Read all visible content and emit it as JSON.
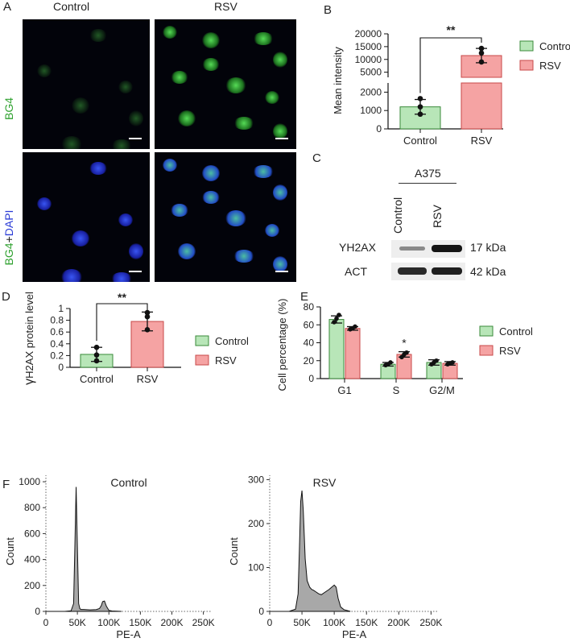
{
  "panels": {
    "A": {
      "letter": "A",
      "columns": [
        "Control",
        "RSV"
      ],
      "row_labels": [
        {
          "parts": [
            {
              "text": "BG4",
              "color": "#2fa12f"
            }
          ]
        },
        {
          "parts": [
            {
              "text": "BG4",
              "color": "#2fa12f"
            },
            {
              "text": "+",
              "color": "#222222"
            },
            {
              "text": "DAPI",
              "color": "#2a3bd6"
            }
          ]
        }
      ]
    },
    "B": {
      "letter": "B"
    },
    "C": {
      "letter": "C",
      "cell_line": "A375",
      "lanes": [
        "Control",
        "RSV"
      ],
      "bands": [
        {
          "protein": "YH2AX",
          "size": "17 kDa",
          "intensity": [
            0.45,
            1.0
          ]
        },
        {
          "protein": "ACT",
          "size": "42 kDa",
          "intensity": [
            0.9,
            0.95
          ]
        }
      ]
    },
    "D": {
      "letter": "D"
    },
    "E": {
      "letter": "E"
    },
    "F": {
      "letter": "F"
    }
  },
  "colors": {
    "control": "#b8e6b8",
    "control_edge": "#3a8a3a",
    "rsv": "#f5a3a3",
    "rsv_edge": "#c84a4a",
    "histogram": "#a8a8a8"
  },
  "chart_data": [
    {
      "id": "B",
      "type": "bar",
      "categories": [
        "Control",
        "RSV"
      ],
      "values": [
        1200,
        11500
      ],
      "errors": [
        400,
        2800
      ],
      "points": [
        [
          800,
          1200,
          1650
        ],
        [
          9000,
          12500,
          14300
        ]
      ],
      "ylabel": "Mean intensity",
      "y_ticks_lower": [
        0,
        1000,
        2000
      ],
      "y_ticks_upper": [
        5000,
        10000,
        15000,
        20000
      ],
      "ylim_lower": [
        0,
        2500
      ],
      "ylim_upper": [
        3000,
        20000
      ],
      "significance": "**",
      "legend": [
        "Control",
        "RSV"
      ],
      "legend_position": "right"
    },
    {
      "id": "D",
      "type": "bar",
      "categories": [
        "Control",
        "RSV"
      ],
      "values": [
        0.22,
        0.78
      ],
      "errors": [
        0.12,
        0.16
      ],
      "points": [
        [
          0.11,
          0.21,
          0.34
        ],
        [
          0.64,
          0.86,
          0.93
        ]
      ],
      "ylabel_prefix": "γ",
      "ylabel": "H2AX protein level",
      "ylim": [
        0,
        1.0
      ],
      "y_ticks": [
        0,
        0.2,
        0.4,
        0.6,
        0.8,
        1.0
      ],
      "significance": "**",
      "legend": [
        "Control",
        "RSV"
      ],
      "legend_position": "right"
    },
    {
      "id": "E",
      "type": "bar",
      "categories": [
        "G1",
        "S",
        "G2/M"
      ],
      "series": [
        {
          "name": "Control",
          "values": [
            66,
            16,
            18
          ],
          "errors": [
            4,
            2,
            3
          ],
          "points": [
            [
              63,
              67,
              71
            ],
            [
              15,
              16,
              18
            ],
            [
              16,
              18,
              20
            ]
          ]
        },
        {
          "name": "RSV",
          "values": [
            56,
            27,
            17
          ],
          "errors": [
            2,
            3,
            2
          ],
          "points": [
            [
              55,
              56,
              58
            ],
            [
              24,
              27,
              29
            ],
            [
              16,
              17,
              18
            ]
          ]
        }
      ],
      "ylabel": "Cell percentage (%)",
      "ylim": [
        0,
        80
      ],
      "y_ticks": [
        0,
        20,
        40,
        60,
        80
      ],
      "annotation": {
        "category": "S",
        "series": "RSV",
        "text": "*"
      },
      "legend_position": "right"
    },
    {
      "id": "F1",
      "type": "area",
      "title": "Control",
      "xlabel": "PE-A",
      "ylabel": "Count",
      "x_ticks": [
        "0",
        "50K",
        "100K",
        "150K",
        "200K",
        "250K"
      ],
      "y_ticks": [
        0,
        200,
        400,
        600,
        800,
        1000
      ],
      "xlim": [
        0,
        262000
      ],
      "ylim": [
        0,
        1050
      ],
      "x": [
        0,
        30000,
        40000,
        44000,
        46000,
        48000,
        50000,
        52000,
        54000,
        56000,
        60000,
        70000,
        80000,
        85000,
        88000,
        90000,
        93000,
        96000,
        100000,
        105000,
        120000
      ],
      "y": [
        0,
        0,
        5,
        60,
        500,
        960,
        500,
        60,
        20,
        15,
        15,
        12,
        14,
        22,
        45,
        75,
        80,
        40,
        8,
        3,
        0
      ]
    },
    {
      "id": "F2",
      "type": "area",
      "title": "RSV",
      "xlabel": "PE-A",
      "ylabel": "Count",
      "x_ticks": [
        "0",
        "50K",
        "100K",
        "150K",
        "200K",
        "250K"
      ],
      "y_ticks": [
        0,
        100,
        200,
        300
      ],
      "xlim": [
        0,
        262000
      ],
      "ylim": [
        0,
        310
      ],
      "x": [
        0,
        30000,
        40000,
        44000,
        46000,
        48000,
        50000,
        52000,
        55000,
        58000,
        62000,
        65000,
        68000,
        72000,
        76000,
        80000,
        86000,
        92000,
        96000,
        100000,
        103000,
        106000,
        110000,
        115000,
        125000
      ],
      "y": [
        0,
        0,
        5,
        40,
        140,
        250,
        275,
        230,
        120,
        70,
        55,
        50,
        48,
        44,
        40,
        38,
        44,
        50,
        55,
        60,
        55,
        30,
        10,
        4,
        0
      ]
    }
  ]
}
